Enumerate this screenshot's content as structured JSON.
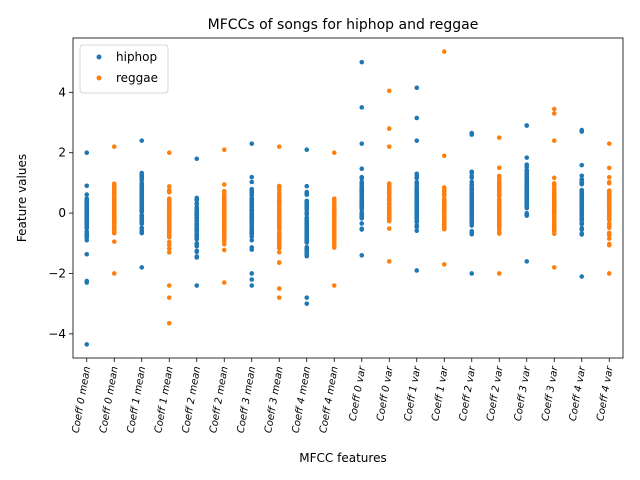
{
  "chart_data": {
    "type": "scatter",
    "title": "MFCCs of songs for hiphop and reggae",
    "xlabel": "MFCC features",
    "ylabel": "Feature values",
    "categories": [
      "Coeff 0 mean",
      "Coeff 0 mean",
      "Coeff 1 mean",
      "Coeff 1 mean",
      "Coeff 2 mean",
      "Coeff 2 mean",
      "Coeff 3 mean",
      "Coeff 3 mean",
      "Coeff 4 mean",
      "Coeff 4 mean",
      "Coeff 0 var",
      "Coeff 0 var",
      "Coeff 1 var",
      "Coeff 1 var",
      "Coeff 2 var",
      "Coeff 2 var",
      "Coeff 3 var",
      "Coeff 3 var",
      "Coeff 4 var",
      "Coeff 4 var"
    ],
    "ylim": [
      -4.8,
      5.8
    ],
    "yticks": [
      -4,
      -2,
      0,
      2,
      4
    ],
    "ytick_labels": [
      "−4",
      "−2",
      "0",
      "2",
      "4"
    ],
    "legend": {
      "placement": "top-left",
      "entries": [
        "hiphop",
        "reggae"
      ]
    },
    "series": [
      {
        "name": "hiphop",
        "color": "#1f77b4",
        "positions": [
          0,
          2,
          4,
          6,
          8,
          10,
          12,
          14,
          16,
          18
        ],
        "ranges": [
          [
            -2.3,
            2.0
          ],
          [
            -1.8,
            2.4
          ],
          [
            -2.4,
            1.8
          ],
          [
            -2.4,
            2.3
          ],
          [
            -3.0,
            2.1
          ],
          [
            -1.4,
            2.3
          ],
          [
            -1.9,
            2.4
          ],
          [
            -2.0,
            2.6
          ],
          [
            -1.6,
            2.9
          ],
          [
            -2.1,
            2.7
          ]
        ],
        "outliers": [
          [
            0,
            -4.35
          ],
          [
            0,
            -2.25
          ],
          [
            6,
            -2.0
          ],
          [
            6,
            -2.2
          ],
          [
            8,
            -2.8
          ],
          [
            10,
            5.0
          ],
          [
            10,
            3.5
          ],
          [
            12,
            4.15
          ],
          [
            12,
            3.15
          ],
          [
            14,
            2.65
          ],
          [
            16,
            2.9
          ],
          [
            18,
            2.75
          ]
        ]
      },
      {
        "name": "reggae",
        "color": "#ff7f0e",
        "positions": [
          1,
          3,
          5,
          7,
          9,
          11,
          13,
          15,
          17,
          19
        ],
        "ranges": [
          [
            -2.0,
            2.2
          ],
          [
            -2.4,
            2.0
          ],
          [
            -2.3,
            2.1
          ],
          [
            -2.8,
            2.2
          ],
          [
            -2.4,
            2.0
          ],
          [
            -1.6,
            2.2
          ],
          [
            -1.7,
            1.9
          ],
          [
            -2.0,
            2.5
          ],
          [
            -1.8,
            2.4
          ],
          [
            -2.0,
            2.3
          ]
        ],
        "outliers": [
          [
            3,
            -2.8
          ],
          [
            3,
            -3.65
          ],
          [
            7,
            -2.5
          ],
          [
            11,
            4.05
          ],
          [
            11,
            2.8
          ],
          [
            13,
            5.35
          ],
          [
            17,
            3.45
          ],
          [
            17,
            3.3
          ]
        ]
      }
    ]
  }
}
